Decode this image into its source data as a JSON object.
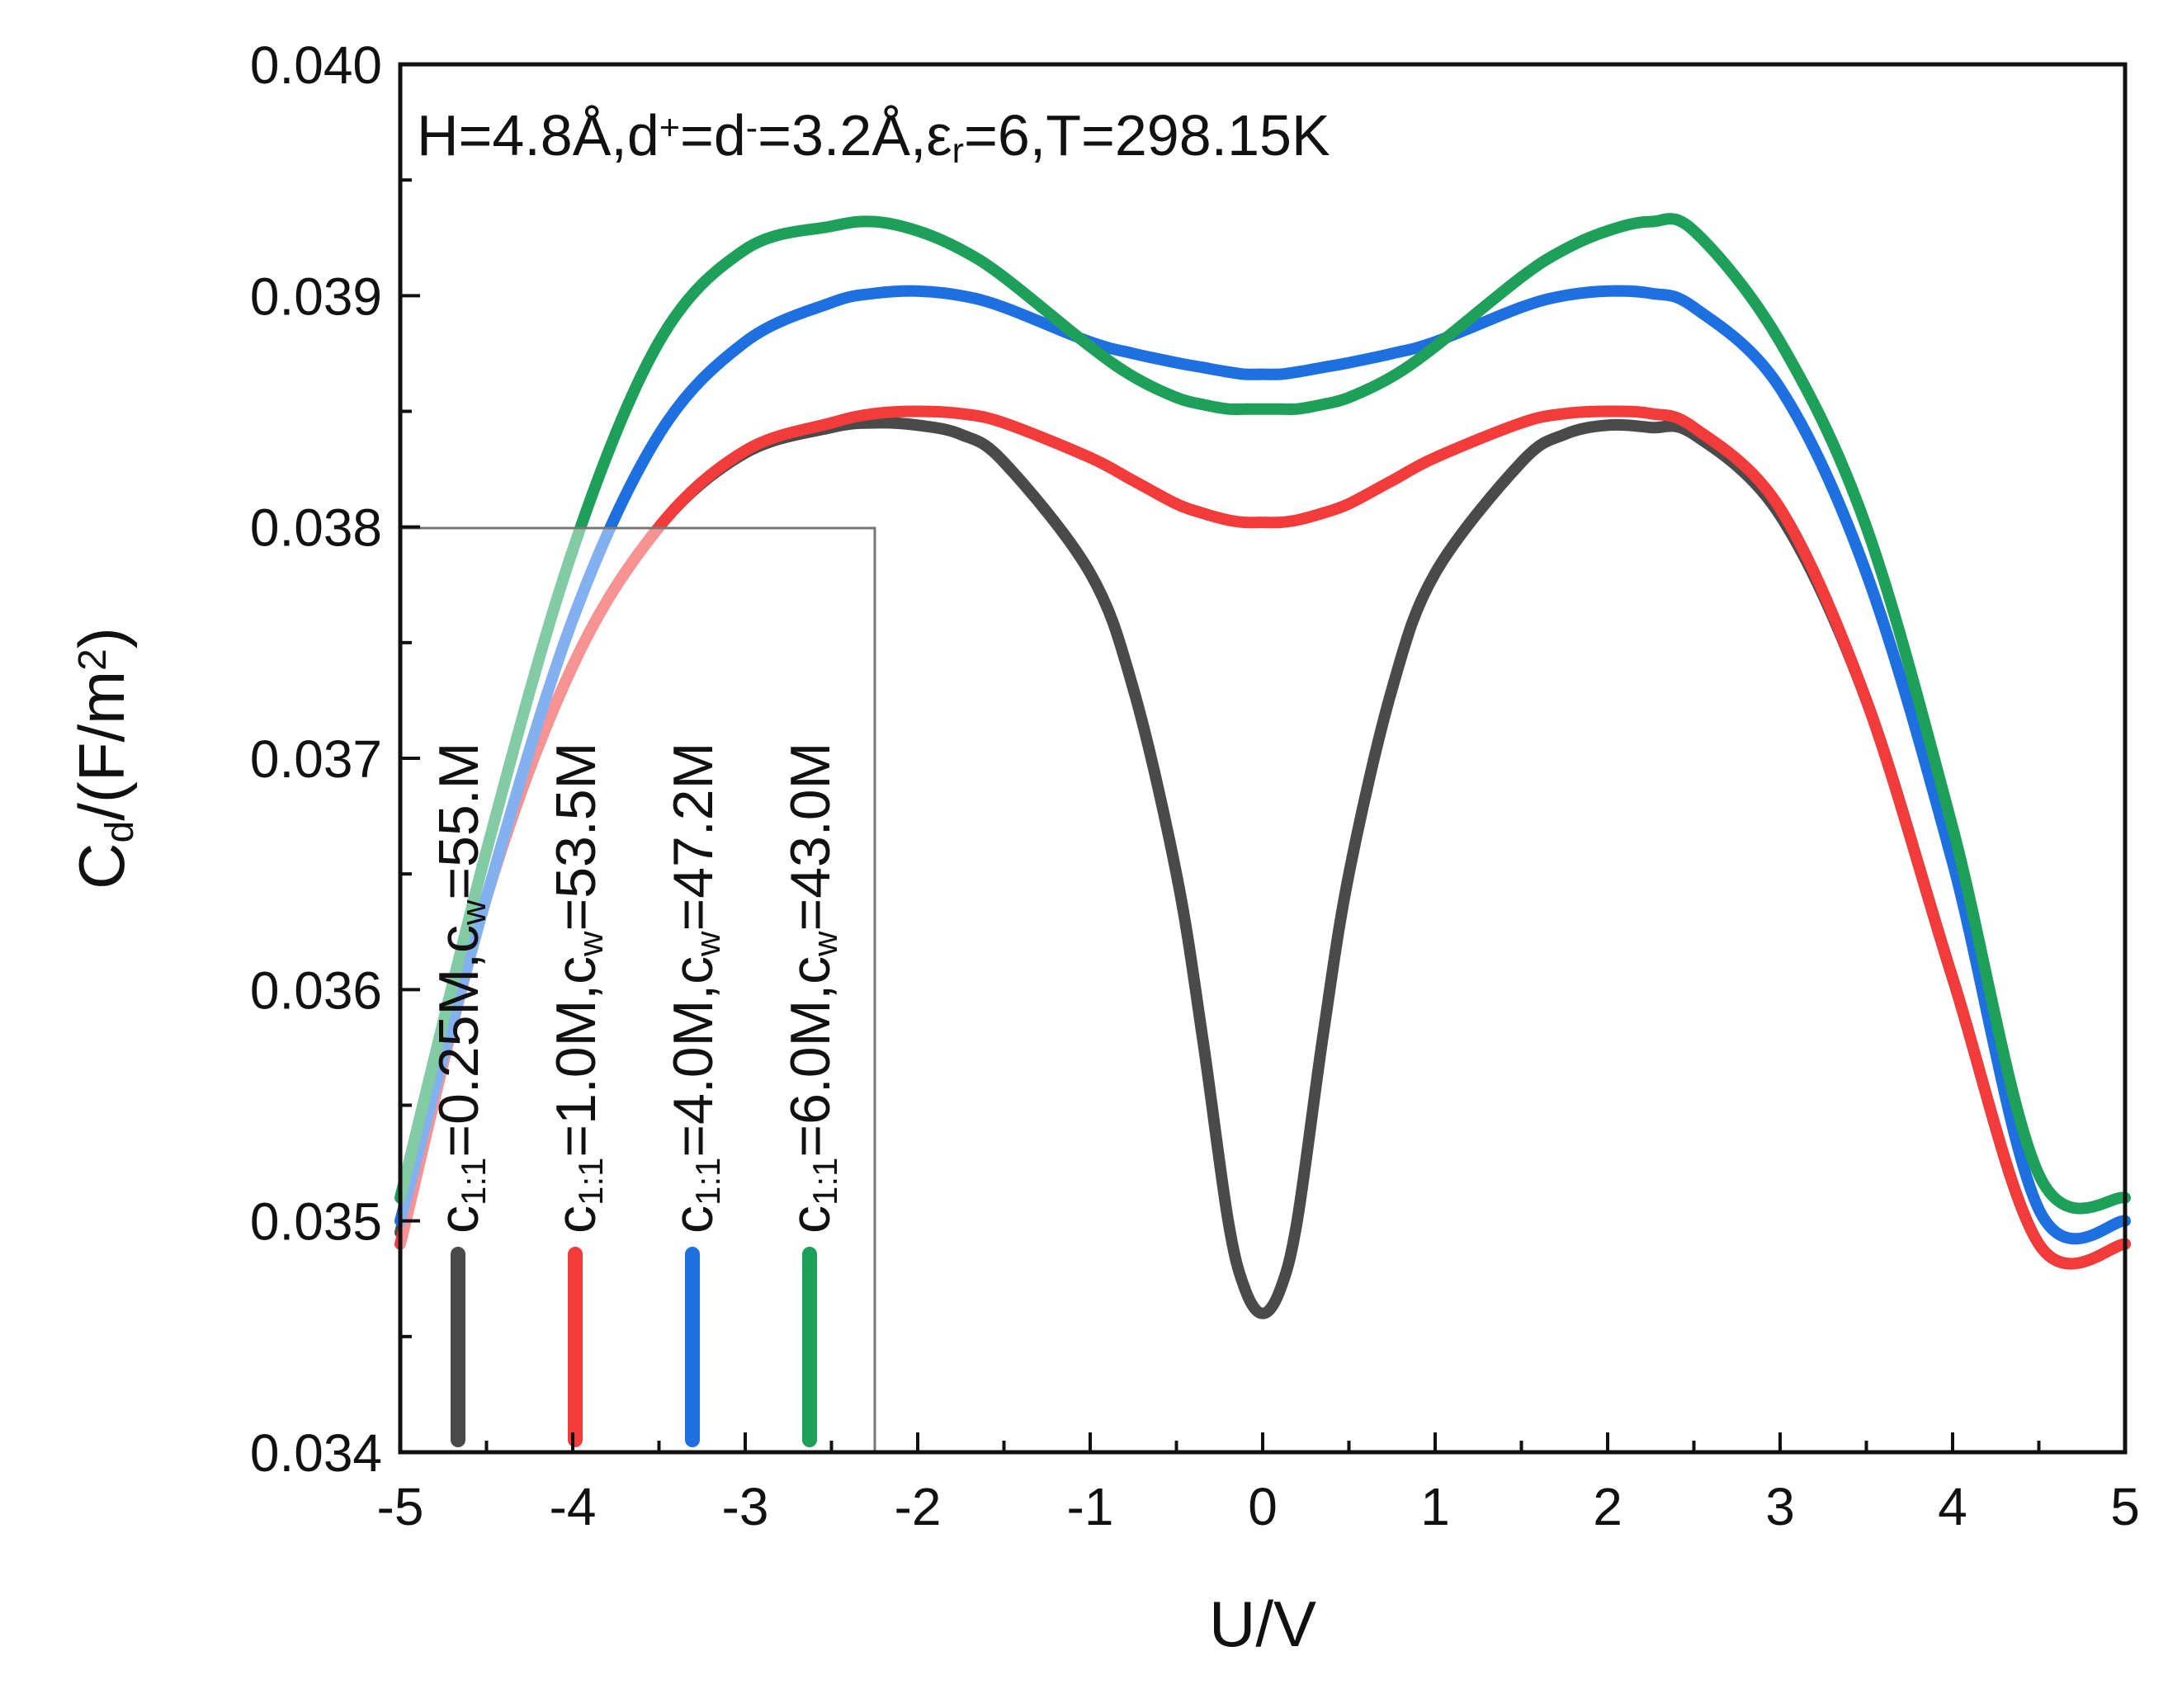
{
  "chart_data": {
    "type": "line",
    "title": "",
    "annotation": {
      "parts": [
        {
          "t": "H=4.8Å,d"
        },
        {
          "t": "+",
          "s": "sup"
        },
        {
          "t": "=d"
        },
        {
          "t": "-",
          "s": "sup"
        },
        {
          "t": "=3.2Å,ε"
        },
        {
          "t": "r",
          "s": "sub"
        },
        {
          "t": "=6,T=298.15K"
        }
      ]
    },
    "xlabel": "U/V",
    "ylabel": {
      "parts": [
        {
          "t": "C"
        },
        {
          "t": "d",
          "s": "sub"
        },
        {
          "t": "/(F/m"
        },
        {
          "t": "2",
          "s": "sup"
        },
        {
          "t": ")"
        }
      ]
    },
    "xlim": [
      -5,
      5
    ],
    "ylim": [
      0.034,
      0.04
    ],
    "xticks": [
      "-5",
      "-4",
      "-3",
      "-2",
      "-1",
      "0",
      "1",
      "2",
      "3",
      "4",
      "5"
    ],
    "yticks": [
      "0.034",
      "0.035",
      "0.036",
      "0.037",
      "0.038",
      "0.039",
      "0.040"
    ],
    "x": [
      -5,
      -4.5,
      -4,
      -3.5,
      -3,
      -2.5,
      -2.25,
      -2,
      -1.75,
      -1.5,
      -1,
      -0.75,
      -0.5,
      -0.35,
      -0.2,
      -0.1,
      0,
      0.1,
      0.2,
      0.35,
      0.5,
      0.75,
      1,
      1.5,
      1.75,
      2,
      2.25,
      2.5,
      3,
      3.5,
      4,
      4.5,
      5
    ],
    "series": [
      {
        "name": "0.25M",
        "color": "#4a4a4a",
        "legend_parts": [
          {
            "t": "c"
          },
          {
            "t": "1:1",
            "s": "sub"
          },
          {
            "t": "=0.25M,c"
          },
          {
            "t": "w",
            "s": "sub"
          },
          {
            "t": "=55.M"
          }
        ],
        "values": [
          0.03495,
          0.0364,
          0.0374,
          0.038,
          0.03832,
          0.03843,
          0.03845,
          0.03844,
          0.0384,
          0.03828,
          0.0378,
          0.0373,
          0.0365,
          0.0358,
          0.035,
          0.0347,
          0.0346,
          0.0347,
          0.035,
          0.0358,
          0.0365,
          0.0373,
          0.0378,
          0.03828,
          0.0384,
          0.03844,
          0.03843,
          0.0384,
          0.03805,
          0.03725,
          0.03605,
          0.0349,
          0.0349
        ]
      },
      {
        "name": "1.0M",
        "color": "#f23b3b",
        "legend_parts": [
          {
            "t": "c"
          },
          {
            "t": "1:1",
            "s": "sub"
          },
          {
            "t": "=1.0M,c"
          },
          {
            "t": "w",
            "s": "sub"
          },
          {
            "t": "=53.5M"
          }
        ],
        "values": [
          0.0349,
          0.0364,
          0.0374,
          0.038,
          0.03833,
          0.03845,
          0.03849,
          0.0385,
          0.03849,
          0.03845,
          0.0383,
          0.0382,
          0.0381,
          0.03806,
          0.03803,
          0.03802,
          0.03802,
          0.03802,
          0.03803,
          0.03806,
          0.0381,
          0.0382,
          0.0383,
          0.03845,
          0.03849,
          0.0385,
          0.03849,
          0.03843,
          0.03808,
          0.03725,
          0.03605,
          0.0349,
          0.0349
        ]
      },
      {
        "name": "4.0M",
        "color": "#1e6fe0",
        "legend_parts": [
          {
            "t": "c"
          },
          {
            "t": "1:1",
            "s": "sub"
          },
          {
            "t": "=4.0M,c"
          },
          {
            "t": "w",
            "s": "sub"
          },
          {
            "t": "=47.2M"
          }
        ],
        "values": [
          0.035,
          0.0364,
          0.0376,
          0.0384,
          0.0388,
          0.03897,
          0.03901,
          0.03902,
          0.039,
          0.03895,
          0.0388,
          0.03875,
          0.03871,
          0.03869,
          0.03867,
          0.03866,
          0.03866,
          0.03866,
          0.03867,
          0.03869,
          0.03871,
          0.03875,
          0.0388,
          0.03895,
          0.039,
          0.03902,
          0.03901,
          0.03895,
          0.0386,
          0.0378,
          0.03655,
          0.03505,
          0.035
        ]
      },
      {
        "name": "6.0M",
        "color": "#1ea05a",
        "legend_parts": [
          {
            "t": "c"
          },
          {
            "t": "1:1",
            "s": "sub"
          },
          {
            "t": "=6.0M,c"
          },
          {
            "t": "w",
            "s": "sub"
          },
          {
            "t": "=43.0M"
          }
        ],
        "values": [
          0.0351,
          0.0366,
          0.0379,
          0.0388,
          0.0392,
          0.0393,
          0.03932,
          0.03928,
          0.0392,
          0.03908,
          0.03878,
          0.03865,
          0.03856,
          0.03853,
          0.03851,
          0.03851,
          0.03851,
          0.03851,
          0.03851,
          0.03853,
          0.03856,
          0.03865,
          0.03878,
          0.03908,
          0.0392,
          0.03928,
          0.03932,
          0.03928,
          0.0388,
          0.038,
          0.0367,
          0.0352,
          0.0351
        ]
      }
    ]
  }
}
